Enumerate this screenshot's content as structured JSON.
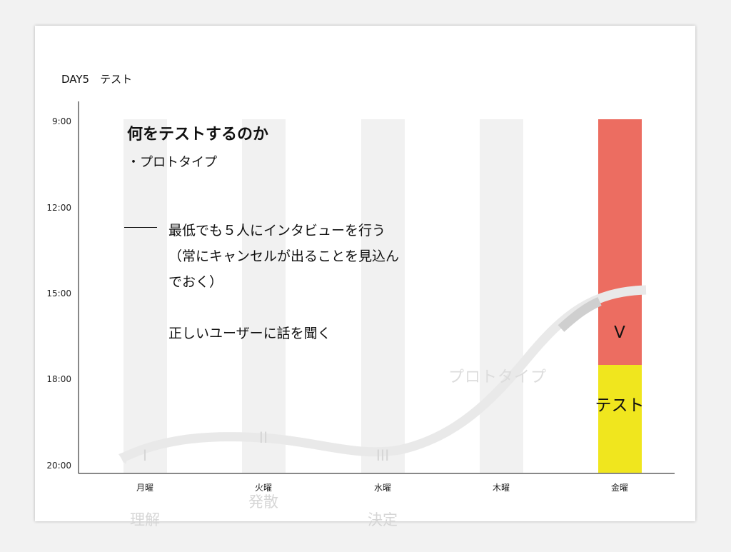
{
  "slide": {
    "title": "DAY5　テスト"
  },
  "times": [
    "9:00",
    "12:00",
    "15:00",
    "18:00",
    "20:00"
  ],
  "days": [
    "月曜",
    "火曜",
    "水曜",
    "木曜",
    "金曜"
  ],
  "phases": [
    {
      "numeral": "I",
      "name": "理解"
    },
    {
      "numeral": "II",
      "name": "発散"
    },
    {
      "numeral": "III",
      "name": "決定"
    },
    {
      "label": "プロトタイプ"
    },
    {
      "numeral": "V",
      "name": "テスト"
    }
  ],
  "content": {
    "heading": "何をテストするのか",
    "bullet": "・プロトタイプ",
    "note": "最低でも５人にインタビューを行う（常にキャンセルが出ることを見込んでおく）",
    "note2": "正しいユーザーに話を聞く"
  },
  "colors": {
    "inactive_bar": "#f1f1f1",
    "test_bar": "#ec6d61",
    "buffer_bar": "#f0e61e",
    "curve": "#e6e6e6",
    "axis": "#111111"
  }
}
